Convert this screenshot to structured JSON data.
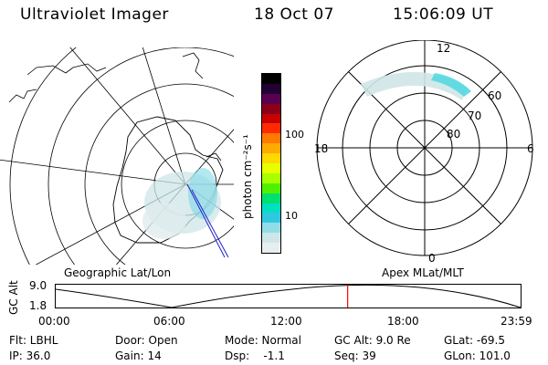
{
  "header": {
    "title": "Ultraviolet Imager",
    "date": "18 Oct 07",
    "time": "15:06:09 UT"
  },
  "geo_panel": {
    "caption": "Geographic Lat/Lon"
  },
  "colorbar": {
    "unit_label": "photon cm⁻²s⁻¹",
    "ticks": [
      "100",
      "10"
    ],
    "colors": [
      "#000000",
      "#220033",
      "#5a0050",
      "#8a0018",
      "#c80000",
      "#ff2a00",
      "#ff7a00",
      "#ffaa00",
      "#ffd800",
      "#e8ff00",
      "#a8ff00",
      "#50f000",
      "#00e070",
      "#00e0c0",
      "#30c8e0",
      "#90dde8",
      "#cfe6e8",
      "#e8eef0"
    ]
  },
  "polar_panel": {
    "caption": "Apex MLat/MLT",
    "mlt_labels": [
      "12",
      "18",
      "6",
      "0"
    ],
    "mlat_labels": [
      "60",
      "70",
      "80"
    ]
  },
  "timeline": {
    "ylabel": "GC Alt",
    "yticks": [
      "9.0",
      "1.8"
    ],
    "xticks": [
      "00:00",
      "06:00",
      "12:00",
      "18:00",
      "23:59"
    ],
    "current_time_fraction": 0.628,
    "marker_color": "#ff0000"
  },
  "status": {
    "row1": [
      "Flt: LBHL",
      "Door: Open",
      "Mode: Normal",
      "GC Alt: 9.0 Re",
      "GLat: -69.5"
    ],
    "row2": [
      "IP: 36.0",
      "Gain: 14",
      "Dsp:    -1.1",
      "Seq: 39",
      "GLon: 101.0"
    ]
  }
}
